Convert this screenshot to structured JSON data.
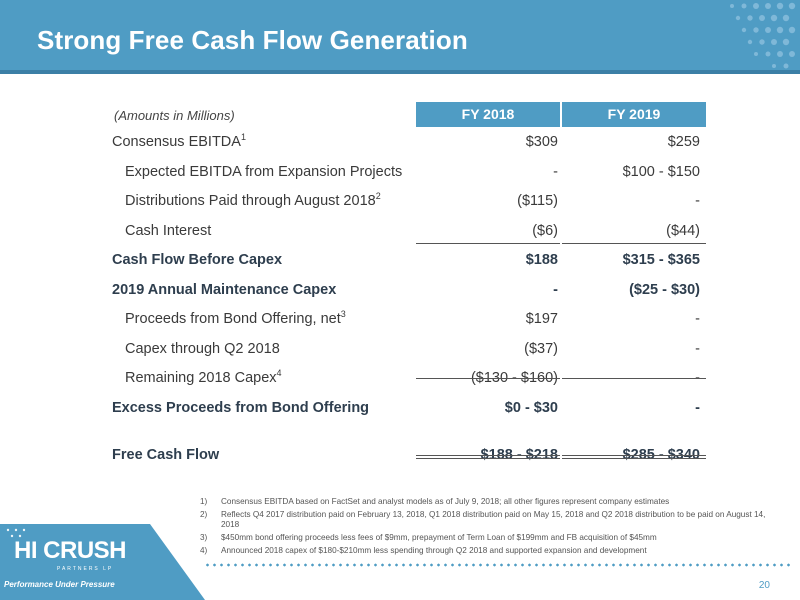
{
  "slide": {
    "title": "Strong Free Cash Flow Generation",
    "page_number": "20"
  },
  "table": {
    "amounts_note": "(Amounts in Millions)",
    "col1": "FY 2018",
    "col2": "FY 2019",
    "rows": [
      {
        "label": "Consensus EBITDA",
        "sup": "1",
        "v1": "$309",
        "v2": "$259"
      },
      {
        "label": "Expected EBITDA from Expansion Projects",
        "sup": "",
        "v1": "-",
        "v2": "$100 - $150"
      },
      {
        "label": "Distributions Paid through August 2018",
        "sup": "2",
        "v1": "($115)",
        "v2": "-"
      },
      {
        "label": "Cash Interest",
        "sup": "",
        "v1": "($6)",
        "v2": "($44)"
      },
      {
        "label": "Cash Flow Before Capex",
        "sup": "",
        "v1": "$188",
        "v2": "$315 - $365"
      },
      {
        "label": "2019 Annual Maintenance Capex",
        "sup": "",
        "v1": "-",
        "v2": "($25 - $30)"
      },
      {
        "label": "Proceeds from Bond Offering, net",
        "sup": "3",
        "v1": "$197",
        "v2": "-"
      },
      {
        "label": "Capex through Q2 2018",
        "sup": "",
        "v1": "($37)",
        "v2": "-"
      },
      {
        "label": "Remaining 2018 Capex",
        "sup": "4",
        "v1": "($130 - $160)",
        "v2": "-"
      },
      {
        "label": "Excess Proceeds from Bond Offering",
        "sup": "",
        "v1": "$0 - $30",
        "v2": "-"
      },
      {
        "label": "Free Cash Flow",
        "sup": "",
        "v1": "$188 - $218",
        "v2": "$285 - $340"
      }
    ]
  },
  "footnotes": [
    {
      "num": "1)",
      "text": "Consensus EBITDA based on FactSet and analyst models as of July 9, 2018; all other figures represent company estimates"
    },
    {
      "num": "2)",
      "text": "Reflects Q4 2017 distribution paid on February 13, 2018, Q1 2018 distribution paid on May 15, 2018 and Q2 2018 distribution to be paid on August 14, 2018"
    },
    {
      "num": "3)",
      "text": "$450mm bond offering proceeds less fees of $9mm, prepayment of Term Loan of $199mm and FB acquisition of $45mm"
    },
    {
      "num": "4)",
      "text": "Announced 2018 capex of $180-$210mm less spending through Q2 2018 and supported expansion and development"
    }
  ],
  "logo": {
    "name": "HI CRUSH",
    "sub": "PARTNERS LP",
    "tagline": "Performance Under Pressure"
  },
  "colors": {
    "brand_blue": "#4f9cc4",
    "dark_blue": "#3c7fa6",
    "text": "#3a3a3a"
  }
}
